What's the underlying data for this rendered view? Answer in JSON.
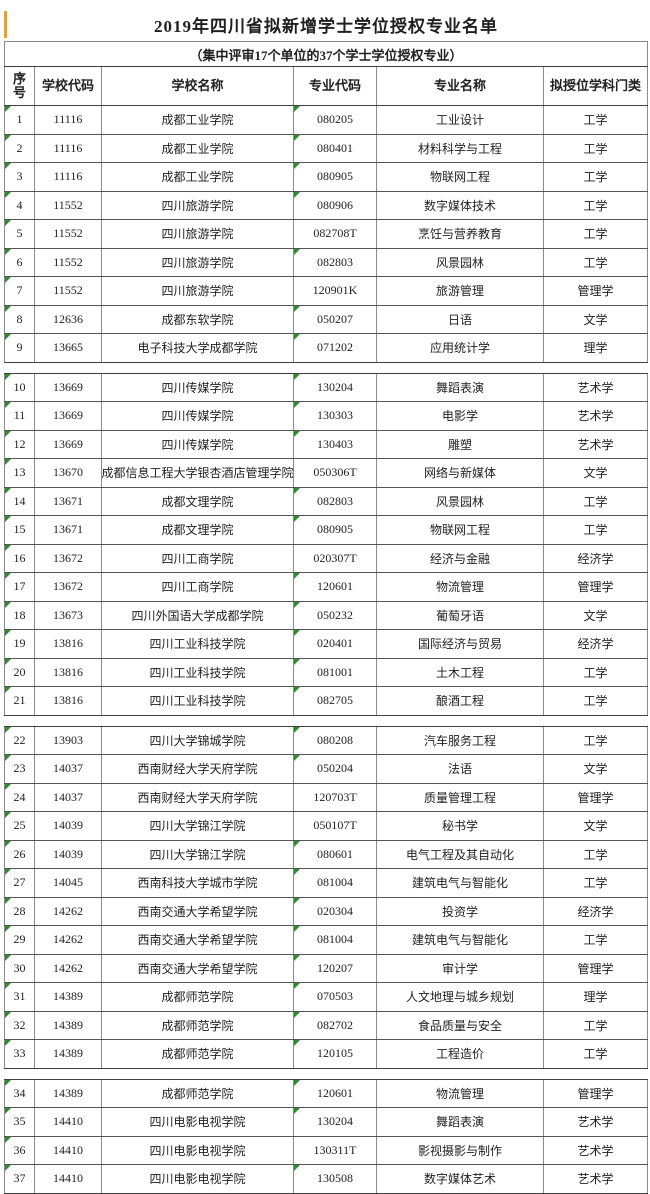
{
  "title": "2019年四川省拟新增学士学位授权专业名单",
  "subtitle": "（集中评审17个单位的37个学士学位授权专业）",
  "colors": {
    "accent_orange": "#dda342",
    "marker_green": "#2e8b2e",
    "border_dark": "#404040",
    "border_light": "#8c8c8c",
    "text": "#1f1f1f"
  },
  "table": {
    "headers": {
      "no": "序\n号",
      "school_code": "学校代码",
      "school": "学校名称",
      "major_code": "专业代码",
      "major": "专业名称",
      "discipline": "拟授位学科门类"
    },
    "sections": [
      {
        "rows": [
          {
            "no": "1",
            "school_code": "11116",
            "school": "成都工业学院",
            "major_code": "080205",
            "major": "工业设计",
            "discipline": "工学"
          },
          {
            "no": "2",
            "school_code": "11116",
            "school": "成都工业学院",
            "major_code": "080401",
            "major": "材料科学与工程",
            "discipline": "工学"
          },
          {
            "no": "3",
            "school_code": "11116",
            "school": "成都工业学院",
            "major_code": "080905",
            "major": "物联网工程",
            "discipline": "工学"
          },
          {
            "no": "4",
            "school_code": "11552",
            "school": "四川旅游学院",
            "major_code": "080906",
            "major": "数字媒体技术",
            "discipline": "工学"
          },
          {
            "no": "5",
            "school_code": "11552",
            "school": "四川旅游学院",
            "major_code": "082708T",
            "major": "烹饪与营养教育",
            "discipline": "工学"
          },
          {
            "no": "6",
            "school_code": "11552",
            "school": "四川旅游学院",
            "major_code": "082803",
            "major": "风景园林",
            "discipline": "工学"
          },
          {
            "no": "7",
            "school_code": "11552",
            "school": "四川旅游学院",
            "major_code": "120901K",
            "major": "旅游管理",
            "discipline": "管理学"
          },
          {
            "no": "8",
            "school_code": "12636",
            "school": "成都东软学院",
            "major_code": "050207",
            "major": "日语",
            "discipline": "文学"
          },
          {
            "no": "9",
            "school_code": "13665",
            "school": "电子科技大学成都学院",
            "major_code": "071202",
            "major": "应用统计学",
            "discipline": "理学"
          }
        ]
      },
      {
        "rows": [
          {
            "no": "10",
            "school_code": "13669",
            "school": "四川传媒学院",
            "major_code": "130204",
            "major": "舞蹈表演",
            "discipline": "艺术学"
          },
          {
            "no": "11",
            "school_code": "13669",
            "school": "四川传媒学院",
            "major_code": "130303",
            "major": "电影学",
            "discipline": "艺术学"
          },
          {
            "no": "12",
            "school_code": "13669",
            "school": "四川传媒学院",
            "major_code": "130403",
            "major": "雕塑",
            "discipline": "艺术学"
          },
          {
            "no": "13",
            "school_code": "13670",
            "school": "成都信息工程大学银杏酒店管理学院",
            "major_code": "050306T",
            "major": "网络与新媒体",
            "discipline": "文学"
          },
          {
            "no": "14",
            "school_code": "13671",
            "school": "成都文理学院",
            "major_code": "082803",
            "major": "风景园林",
            "discipline": "工学"
          },
          {
            "no": "15",
            "school_code": "13671",
            "school": "成都文理学院",
            "major_code": "080905",
            "major": "物联网工程",
            "discipline": "工学"
          },
          {
            "no": "16",
            "school_code": "13672",
            "school": "四川工商学院",
            "major_code": "020307T",
            "major": "经济与金融",
            "discipline": "经济学"
          },
          {
            "no": "17",
            "school_code": "13672",
            "school": "四川工商学院",
            "major_code": "120601",
            "major": "物流管理",
            "discipline": "管理学"
          },
          {
            "no": "18",
            "school_code": "13673",
            "school": "四川外国语大学成都学院",
            "major_code": "050232",
            "major": "葡萄牙语",
            "discipline": "文学"
          },
          {
            "no": "19",
            "school_code": "13816",
            "school": "四川工业科技学院",
            "major_code": "020401",
            "major": "国际经济与贸易",
            "discipline": "经济学"
          },
          {
            "no": "20",
            "school_code": "13816",
            "school": "四川工业科技学院",
            "major_code": "081001",
            "major": "土木工程",
            "discipline": "工学"
          },
          {
            "no": "21",
            "school_code": "13816",
            "school": "四川工业科技学院",
            "major_code": "082705",
            "major": "酿酒工程",
            "discipline": "工学"
          }
        ]
      },
      {
        "rows": [
          {
            "no": "22",
            "school_code": "13903",
            "school": "四川大学锦城学院",
            "major_code": "080208",
            "major": "汽车服务工程",
            "discipline": "工学"
          },
          {
            "no": "23",
            "school_code": "14037",
            "school": "西南财经大学天府学院",
            "major_code": "050204",
            "major": "法语",
            "discipline": "文学"
          },
          {
            "no": "24",
            "school_code": "14037",
            "school": "西南财经大学天府学院",
            "major_code": "120703T",
            "major": "质量管理工程",
            "discipline": "管理学"
          },
          {
            "no": "25",
            "school_code": "14039",
            "school": "四川大学锦江学院",
            "major_code": "050107T",
            "major": "秘书学",
            "discipline": "文学"
          },
          {
            "no": "26",
            "school_code": "14039",
            "school": "四川大学锦江学院",
            "major_code": "080601",
            "major": "电气工程及其自动化",
            "discipline": "工学"
          },
          {
            "no": "27",
            "school_code": "14045",
            "school": "西南科技大学城市学院",
            "major_code": "081004",
            "major": "建筑电气与智能化",
            "discipline": "工学"
          },
          {
            "no": "28",
            "school_code": "14262",
            "school": "西南交通大学希望学院",
            "major_code": "020304",
            "major": "投资学",
            "discipline": "经济学"
          },
          {
            "no": "29",
            "school_code": "14262",
            "school": "西南交通大学希望学院",
            "major_code": "081004",
            "major": "建筑电气与智能化",
            "discipline": "工学"
          },
          {
            "no": "30",
            "school_code": "14262",
            "school": "西南交通大学希望学院",
            "major_code": "120207",
            "major": "审计学",
            "discipline": "管理学"
          },
          {
            "no": "31",
            "school_code": "14389",
            "school": "成都师范学院",
            "major_code": "070503",
            "major": "人文地理与城乡规划",
            "discipline": "理学"
          },
          {
            "no": "32",
            "school_code": "14389",
            "school": "成都师范学院",
            "major_code": "082702",
            "major": "食品质量与安全",
            "discipline": "工学"
          },
          {
            "no": "33",
            "school_code": "14389",
            "school": "成都师范学院",
            "major_code": "120105",
            "major": "工程造价",
            "discipline": "工学"
          }
        ]
      },
      {
        "rows": [
          {
            "no": "34",
            "school_code": "14389",
            "school": "成都师范学院",
            "major_code": "120601",
            "major": "物流管理",
            "discipline": "管理学"
          },
          {
            "no": "35",
            "school_code": "14410",
            "school": "四川电影电视学院",
            "major_code": "130204",
            "major": "舞蹈表演",
            "discipline": "艺术学"
          },
          {
            "no": "36",
            "school_code": "14410",
            "school": "四川电影电视学院",
            "major_code": "130311T",
            "major": "影视摄影与制作",
            "discipline": "艺术学"
          },
          {
            "no": "37",
            "school_code": "14410",
            "school": "四川电影电视学院",
            "major_code": "130508",
            "major": "数字媒体艺术",
            "discipline": "艺术学"
          }
        ]
      }
    ]
  }
}
